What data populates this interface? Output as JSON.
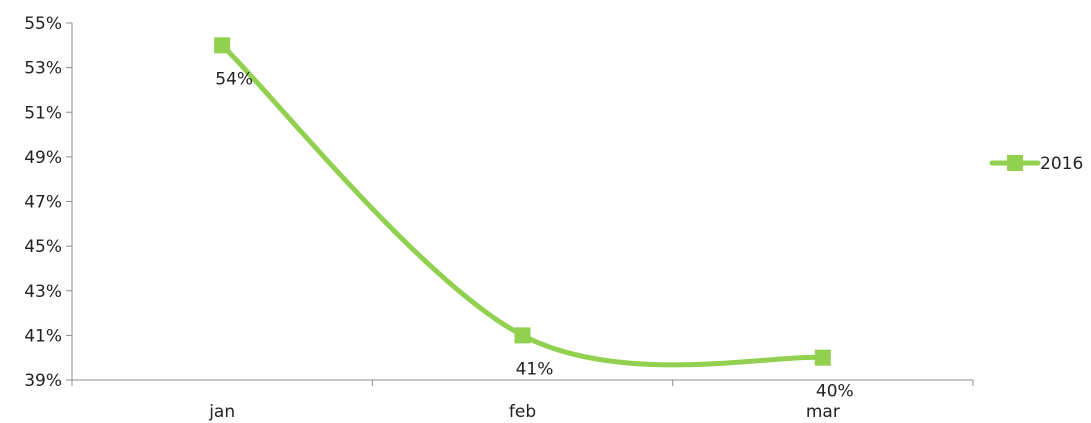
{
  "chart_data": {
    "type": "line",
    "categories": [
      "jan",
      "feb",
      "mar"
    ],
    "series": [
      {
        "name": "2016",
        "values": [
          54,
          41,
          40
        ],
        "data_labels": [
          "54%",
          "41%",
          "40%"
        ],
        "color": "#92d050"
      }
    ],
    "y_ticks": [
      "39%",
      "41%",
      "43%",
      "45%",
      "47%",
      "49%",
      "51%",
      "53%",
      "55%"
    ],
    "ylim": [
      39,
      55
    ],
    "y_step": 2,
    "smooth": true,
    "marker": "square",
    "grid": false,
    "legend_position": "right",
    "axis_color": "#8c8c8c"
  }
}
